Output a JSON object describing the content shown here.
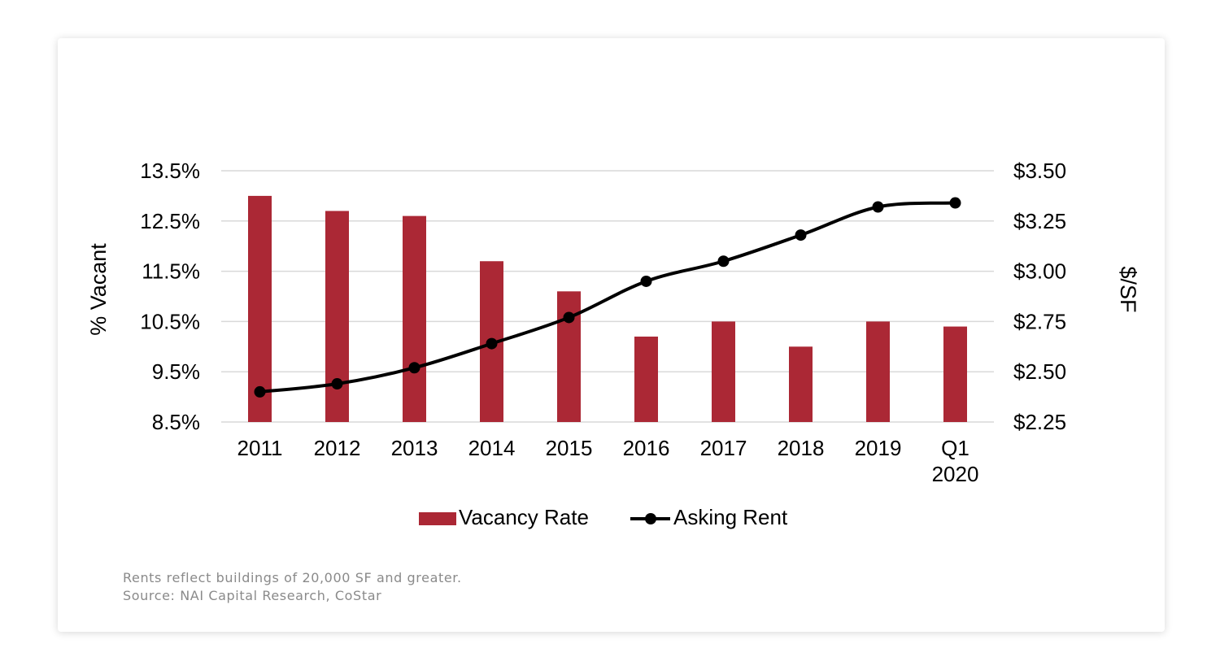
{
  "chart_data": {
    "type": "bar",
    "categories": [
      "2011",
      "2012",
      "2013",
      "2014",
      "2015",
      "2016",
      "2017",
      "2018",
      "2019",
      "Q1\n2020"
    ],
    "series": [
      {
        "name": "Vacancy Rate",
        "kind": "bar",
        "axis": "left",
        "values": [
          13.0,
          12.7,
          12.6,
          11.7,
          11.1,
          10.2,
          10.5,
          10.0,
          10.5,
          10.4
        ]
      },
      {
        "name": "Asking Rent",
        "kind": "line",
        "axis": "right",
        "values": [
          2.4,
          2.44,
          2.52,
          2.64,
          2.77,
          2.95,
          3.05,
          3.18,
          3.32,
          3.34
        ]
      }
    ],
    "y_left": {
      "label": "% Vacant",
      "min": 8.5,
      "max": 13.5,
      "ticks": [
        {
          "value": 13.5,
          "label": "13.5%"
        },
        {
          "value": 12.5,
          "label": "12.5%"
        },
        {
          "value": 11.5,
          "label": "11.5%"
        },
        {
          "value": 10.5,
          "label": "10.5%"
        },
        {
          "value": 9.5,
          "label": "9.5%"
        },
        {
          "value": 8.5,
          "label": "8.5%"
        }
      ]
    },
    "y_right": {
      "label": "$/SF",
      "min": 2.25,
      "max": 3.5,
      "ticks": [
        {
          "value": 3.5,
          "label": "$3.50"
        },
        {
          "value": 3.25,
          "label": "$3.25"
        },
        {
          "value": 3.0,
          "label": "$3.00"
        },
        {
          "value": 2.75,
          "label": "$2.75"
        },
        {
          "value": 2.5,
          "label": "$2.50"
        },
        {
          "value": 2.25,
          "label": "$2.25"
        }
      ]
    },
    "grid": true,
    "legend": "bottom",
    "colors": {
      "bar": "#ab2835",
      "line": "#000000",
      "grid": "#d9d9d9"
    }
  },
  "notes": {
    "line1": "Rents reflect buildings of 20,000 SF and greater.",
    "line2": "Source: NAI Capital Research, CoStar"
  }
}
